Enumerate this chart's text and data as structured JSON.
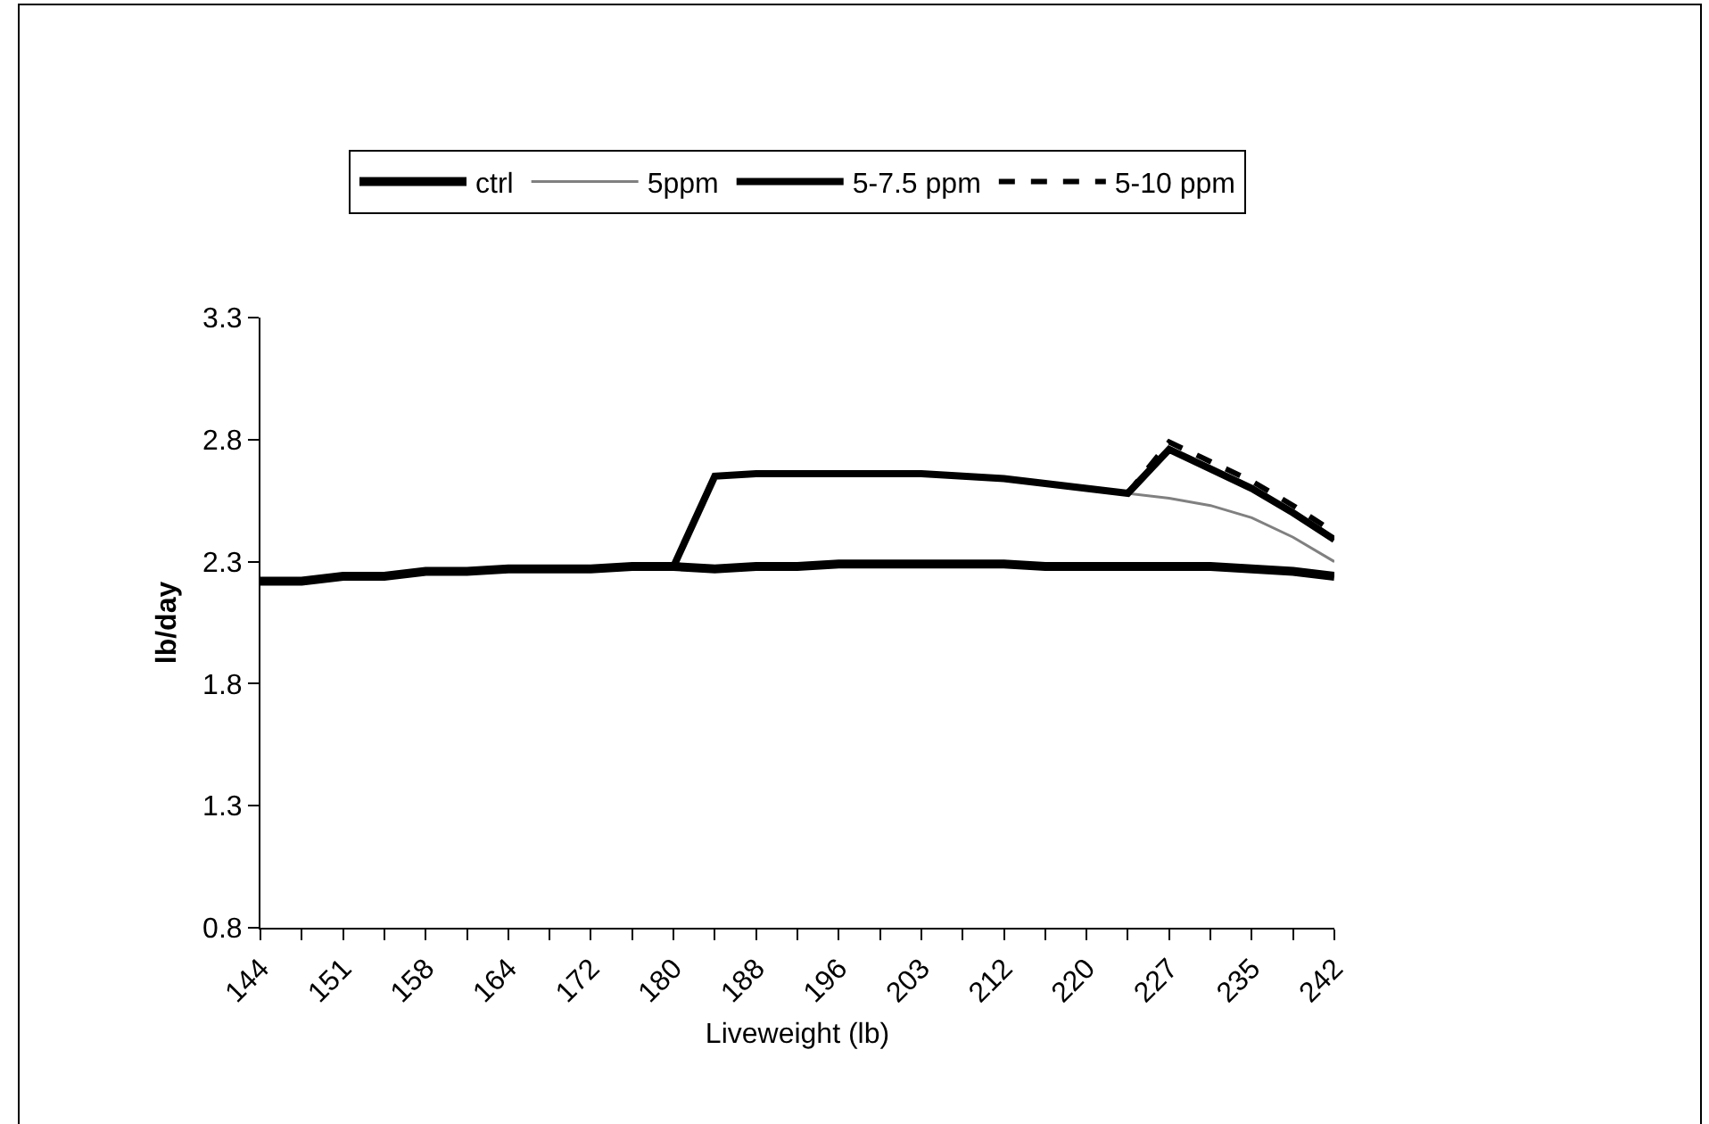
{
  "chart_data": {
    "type": "line",
    "xlabel": "Liveweight (lb)",
    "ylabel": "lb/day",
    "categories": [
      "144",
      null,
      "151",
      null,
      "158",
      null,
      "164",
      null,
      "172",
      null,
      "180",
      null,
      "188",
      null,
      "196",
      null,
      "203",
      null,
      "212",
      null,
      "220",
      null,
      "227",
      null,
      "235",
      null,
      "242"
    ],
    "ylim": [
      0.8,
      3.3
    ],
    "yticks": [
      0.8,
      1.3,
      1.8,
      2.3,
      2.8,
      3.3
    ],
    "grid": false,
    "legend": "top",
    "marker": "none",
    "series": [
      {
        "name": "ctrl",
        "color": "#000000",
        "line_style": "solid",
        "values": [
          2.22,
          2.22,
          2.24,
          2.24,
          2.26,
          2.26,
          2.27,
          2.27,
          2.27,
          2.28,
          2.28,
          2.27,
          2.28,
          2.28,
          2.29,
          2.29,
          2.29,
          2.29,
          2.29,
          2.28,
          2.28,
          2.28,
          2.28,
          2.28,
          2.27,
          2.26,
          2.24
        ]
      },
      {
        "name": "5ppm",
        "color": "#808080",
        "line_style": "solid",
        "values": [
          null,
          null,
          null,
          null,
          null,
          null,
          null,
          null,
          null,
          null,
          null,
          null,
          null,
          null,
          null,
          null,
          null,
          null,
          null,
          null,
          null,
          2.58,
          2.56,
          2.53,
          2.48,
          2.4,
          2.3
        ]
      },
      {
        "name": "5-7.5 ppm",
        "color": "#000000",
        "line_style": "solid",
        "values": [
          null,
          null,
          null,
          null,
          null,
          null,
          null,
          null,
          null,
          null,
          2.28,
          2.65,
          2.66,
          2.66,
          2.66,
          2.66,
          2.66,
          2.65,
          2.64,
          2.62,
          2.6,
          2.58,
          2.76,
          2.68,
          2.6,
          2.5,
          2.39
        ]
      },
      {
        "name": "5-10 ppm",
        "color": "#000000",
        "line_style": "dashed",
        "values": [
          null,
          null,
          null,
          null,
          null,
          null,
          null,
          null,
          null,
          null,
          null,
          null,
          null,
          null,
          null,
          null,
          null,
          null,
          null,
          null,
          null,
          2.58,
          2.79,
          2.71,
          2.63,
          2.53,
          2.42
        ]
      }
    ]
  }
}
